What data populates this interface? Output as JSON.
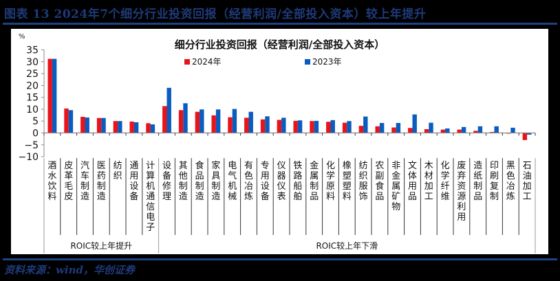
{
  "figure": {
    "title": "图表 13   2024年7个细分行业投资回报（经营利润/全部投入资本）较上年提升",
    "source": "资料来源：wind，华创证券"
  },
  "colors": {
    "series_2024": "#e8141c",
    "series_2023": "#0b5cbf",
    "title_blue": "#1f3a7a"
  },
  "chart_data": {
    "type": "bar",
    "title": "细分行业投资回报（经营利润/全部投入资本）",
    "xlabel": "",
    "ylabel": "%",
    "ylim": [
      -10,
      35
    ],
    "yticks": [
      35,
      30,
      25,
      20,
      15,
      10,
      5,
      0,
      -5,
      -10
    ],
    "grid": false,
    "legend_position": "top",
    "categories": [
      "酒水饮料",
      "皮革毛皮",
      "汽车制造",
      "医药制造",
      "纺织",
      "通用设备",
      "计算机通信电子",
      "设备修理",
      "其他制造",
      "食品制造",
      "家具制造",
      "电气机械",
      "有色冶炼",
      "专用设备",
      "仪器仪表",
      "铁路船舶",
      "金属制品",
      "化学原料",
      "橡塑塑料",
      "纺织服饰",
      "农副食品",
      "非金属矿物",
      "文体用品",
      "木材加工",
      "化学纤维",
      "废弃资源利用",
      "造纸制品",
      "印刷复制",
      "黑色冶炼",
      "石油加工"
    ],
    "series": [
      {
        "name": "2024年",
        "color": "#e8141c",
        "values": [
          31.2,
          10.3,
          6.8,
          6.3,
          5.0,
          4.8,
          4.1,
          11.3,
          9.6,
          8.9,
          7.4,
          6.6,
          6.4,
          5.7,
          5.5,
          5.1,
          5.0,
          4.7,
          4.3,
          3.0,
          2.8,
          2.3,
          2.1,
          1.6,
          1.4,
          1.4,
          0.9,
          0.4,
          -0.3,
          -3.0
        ]
      },
      {
        "name": "2023年",
        "color": "#0b5cbf",
        "values": [
          31.2,
          9.6,
          6.5,
          6.3,
          5.0,
          4.5,
          3.6,
          19.0,
          12.5,
          9.9,
          9.9,
          10.1,
          8.9,
          7.0,
          6.4,
          5.3,
          5.1,
          5.4,
          5.0,
          6.9,
          4.2,
          4.2,
          7.8,
          4.3,
          1.9,
          2.5,
          2.8,
          2.8,
          2.2,
          -0.7
        ]
      }
    ],
    "groups": [
      {
        "label": "ROIC较上年提升",
        "start": 0,
        "end": 6
      },
      {
        "label": "ROIC较上年下滑",
        "start": 7,
        "end": 29
      }
    ]
  }
}
